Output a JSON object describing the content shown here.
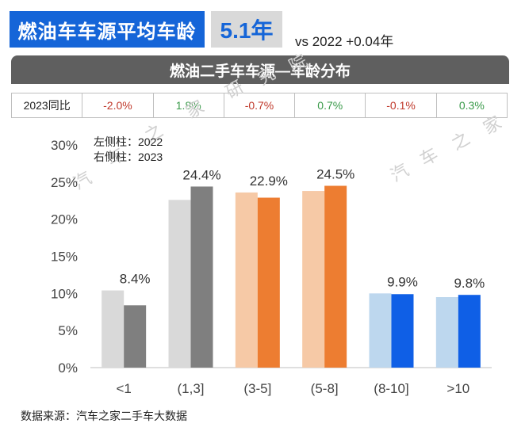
{
  "header": {
    "title": "燃油车车源平均车龄",
    "value": "5.1年",
    "comparison": "vs 2022 +0.04年"
  },
  "subtitle": "燃油二手车车源—车龄分布",
  "yoy": {
    "label": "2023同比",
    "values": [
      "-2.0%",
      "1.8%",
      "-0.7%",
      "0.7%",
      "-0.1%",
      "0.3%"
    ]
  },
  "legend_note": {
    "left": "左侧柱：2022",
    "right": "右侧柱：2023"
  },
  "source": "数据来源：汽车之家二手车大数据",
  "colors": {
    "header_blue": "#1565d8",
    "gray_2022": "#d9d9d9",
    "gray_2023": "#7f7f7f",
    "orange_2022": "#f6c9a6",
    "orange_2023": "#ed7d31",
    "blue_2022": "#bdd7ee",
    "blue_2023": "#0f5fe6"
  },
  "chart_data": {
    "type": "bar",
    "categories": [
      "<1",
      "(1,3]",
      "(3-5]",
      "(5-8]",
      "(8-10]",
      ">10"
    ],
    "series": [
      {
        "name": "2022",
        "values": [
          10.4,
          22.6,
          23.6,
          23.8,
          10.0,
          9.5
        ]
      },
      {
        "name": "2023",
        "values": [
          8.4,
          24.4,
          22.9,
          24.5,
          9.9,
          9.8
        ]
      }
    ],
    "data_labels": [
      "8.4%",
      "24.4%",
      "22.9%",
      "24.5%",
      "9.9%",
      "9.8%"
    ],
    "yticks": [
      "0%",
      "5%",
      "10%",
      "15%",
      "20%",
      "25%",
      "30%"
    ],
    "ylim": [
      0,
      30
    ],
    "bar_colors": [
      [
        "#d9d9d9",
        "#7f7f7f"
      ],
      [
        "#d9d9d9",
        "#7f7f7f"
      ],
      [
        "#f6c9a6",
        "#ed7d31"
      ],
      [
        "#f6c9a6",
        "#ed7d31"
      ],
      [
        "#bdd7ee",
        "#0f5fe6"
      ],
      [
        "#bdd7ee",
        "#0f5fe6"
      ]
    ],
    "grid": false
  },
  "watermarks": [
    "汽",
    "车",
    "之",
    "家",
    "研",
    "究",
    "院",
    "汽",
    "车",
    "之",
    "家"
  ]
}
